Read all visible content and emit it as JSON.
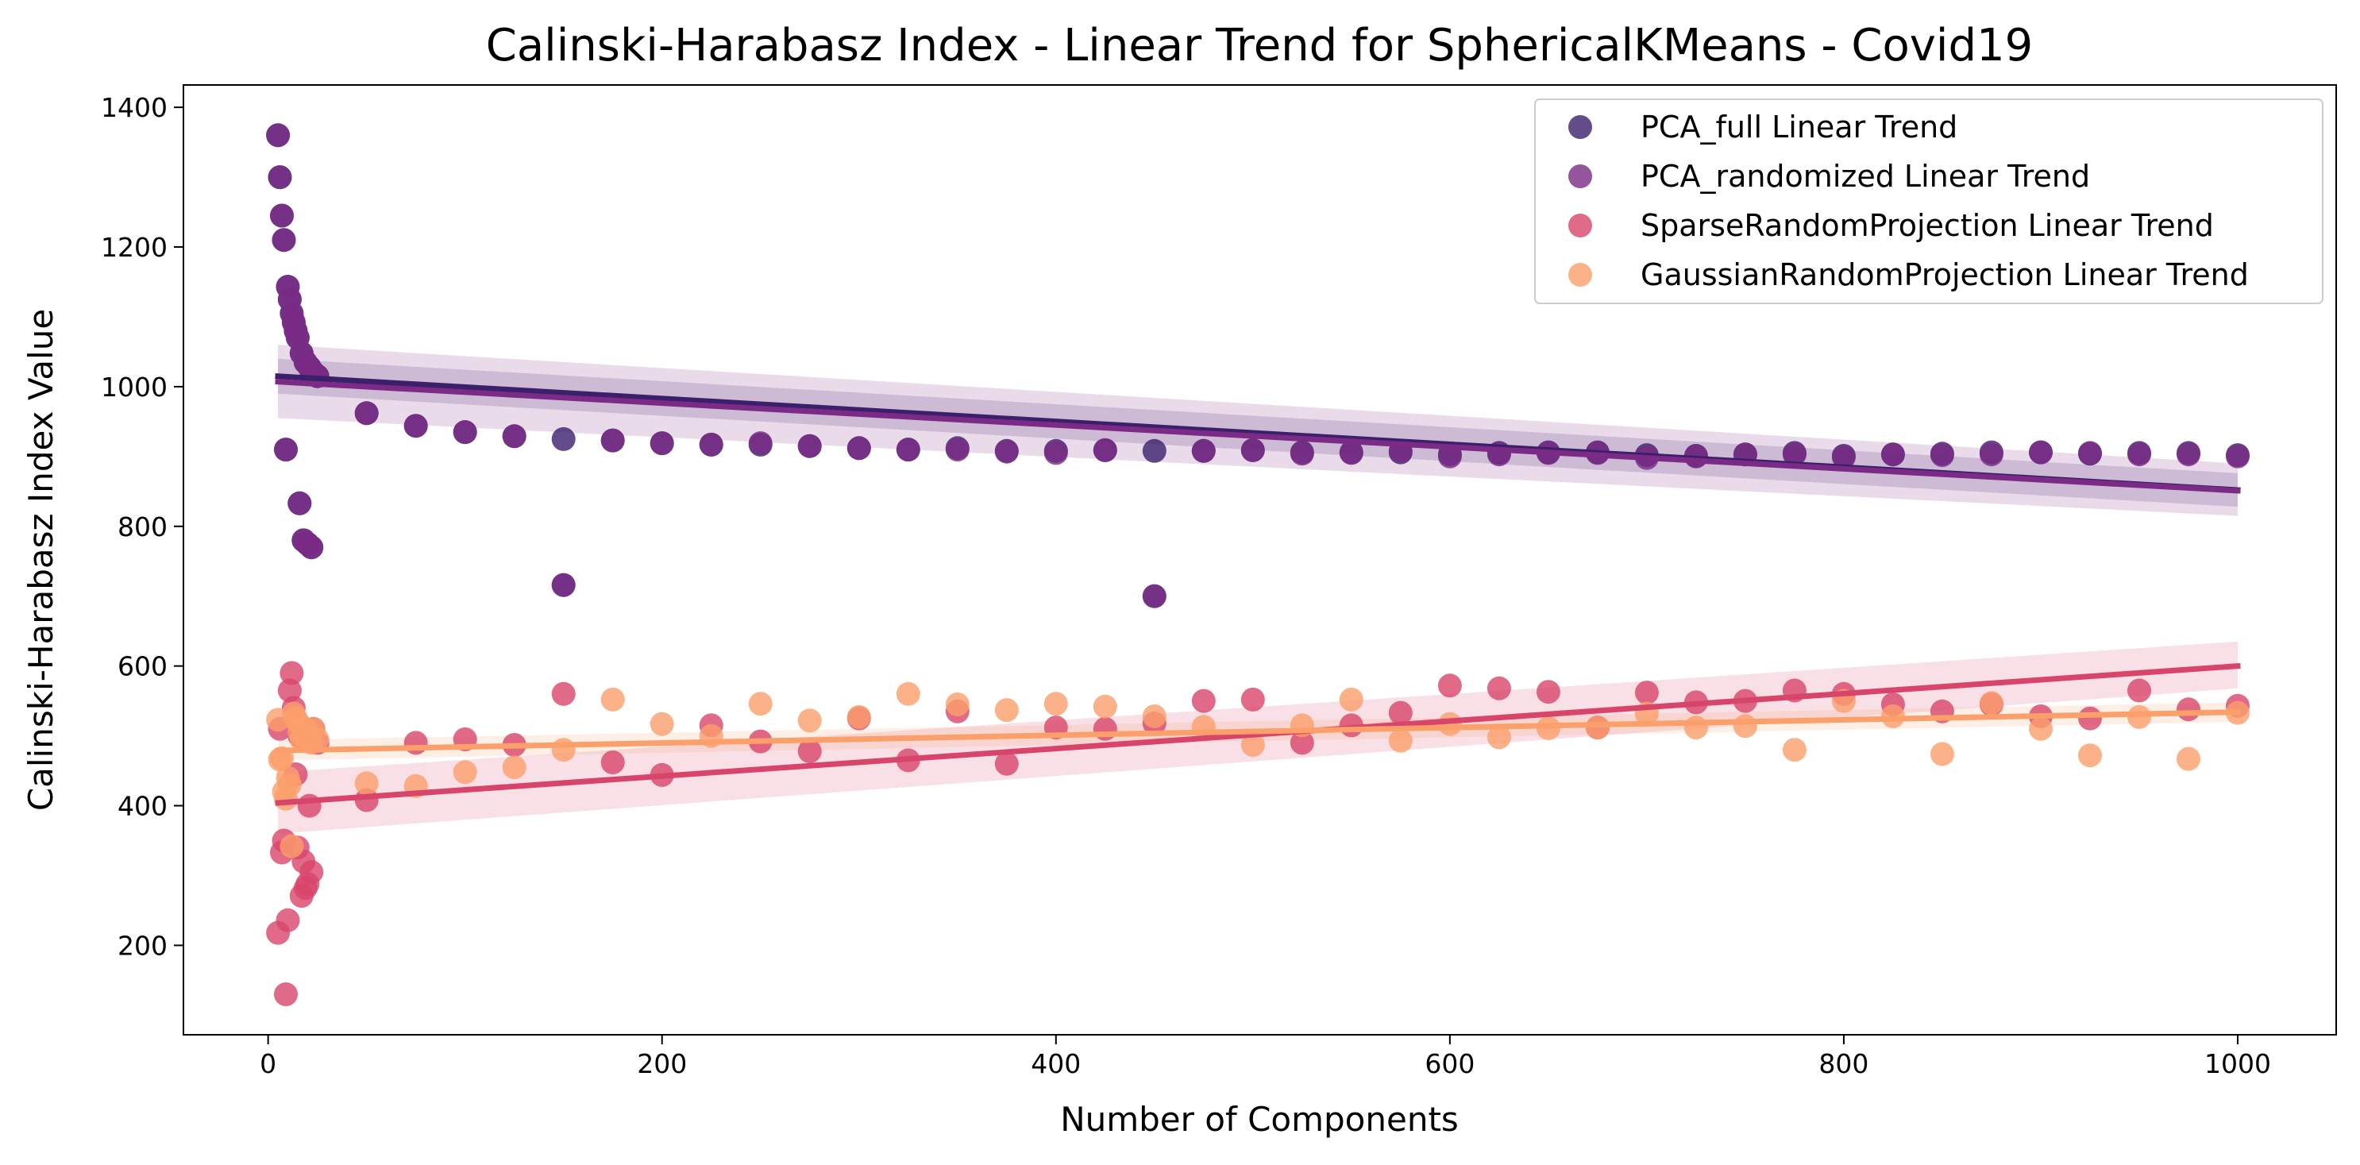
{
  "chart_data": {
    "type": "scatter",
    "title": "Calinski-Harabasz Index - Linear Trend for SphericalKMeans - Covid19",
    "xlabel": "Number of Components",
    "ylabel": "Calinski-Harabasz Index Value",
    "xlim": [
      -43,
      1050
    ],
    "ylim": [
      72,
      1432
    ],
    "xticks": [
      0,
      200,
      400,
      600,
      800,
      1000
    ],
    "yticks": [
      200,
      400,
      600,
      800,
      1000,
      1200,
      1400
    ],
    "grid": false,
    "legend_position": "top-right",
    "series": [
      {
        "name": "PCA_full Linear Trend",
        "color": "#3b1f6b",
        "trend": {
          "x0": 5,
          "y0": 1015,
          "x1": 1000,
          "y1": 852
        },
        "band": {
          "x0": 5,
          "lo0": 990,
          "hi0": 1040,
          "x1": 1000,
          "lo1": 828,
          "hi1": 876
        },
        "points": [
          [
            5,
            1360
          ],
          [
            6,
            1300
          ],
          [
            7,
            1245
          ],
          [
            8,
            1210
          ],
          [
            9,
            910
          ],
          [
            10,
            1143
          ],
          [
            11,
            1125
          ],
          [
            12,
            1105
          ],
          [
            13,
            1092
          ],
          [
            14,
            1080
          ],
          [
            15,
            1070
          ],
          [
            16,
            833
          ],
          [
            17,
            1048
          ],
          [
            18,
            780
          ],
          [
            19,
            1035
          ],
          [
            20,
            775
          ],
          [
            21,
            1028
          ],
          [
            22,
            770
          ],
          [
            23,
            1020
          ],
          [
            25,
            1015
          ],
          [
            50,
            962
          ],
          [
            75,
            944
          ],
          [
            100,
            935
          ],
          [
            125,
            929
          ],
          [
            150,
            925
          ],
          [
            175,
            923
          ],
          [
            200,
            919
          ],
          [
            225,
            917
          ],
          [
            250,
            917
          ],
          [
            275,
            915
          ],
          [
            300,
            912
          ],
          [
            325,
            910
          ],
          [
            350,
            912
          ],
          [
            375,
            908
          ],
          [
            400,
            908
          ],
          [
            425,
            909
          ],
          [
            450,
            908
          ],
          [
            475,
            908
          ],
          [
            500,
            909
          ],
          [
            525,
            906
          ],
          [
            550,
            906
          ],
          [
            575,
            906
          ],
          [
            600,
            903
          ],
          [
            625,
            905
          ],
          [
            650,
            906
          ],
          [
            675,
            906
          ],
          [
            700,
            902
          ],
          [
            725,
            901
          ],
          [
            750,
            903
          ],
          [
            775,
            905
          ],
          [
            800,
            901
          ],
          [
            825,
            903
          ],
          [
            850,
            904
          ],
          [
            875,
            906
          ],
          [
            900,
            906
          ],
          [
            925,
            904
          ],
          [
            950,
            905
          ],
          [
            975,
            905
          ],
          [
            1000,
            902
          ],
          [
            150,
            716
          ],
          [
            450,
            700
          ]
        ]
      },
      {
        "name": "PCA_randomized Linear Trend",
        "color": "#7b2a85",
        "trend": {
          "x0": 5,
          "y0": 1007,
          "x1": 1000,
          "y1": 851
        },
        "band": {
          "x0": 5,
          "lo0": 955,
          "hi0": 1060,
          "x1": 1000,
          "lo1": 815,
          "hi1": 890
        },
        "points": [
          [
            5,
            1360
          ],
          [
            6,
            1300
          ],
          [
            7,
            1245
          ],
          [
            8,
            1210
          ],
          [
            9,
            910
          ],
          [
            10,
            1143
          ],
          [
            11,
            1125
          ],
          [
            12,
            1105
          ],
          [
            13,
            1092
          ],
          [
            14,
            1080
          ],
          [
            15,
            1070
          ],
          [
            16,
            833
          ],
          [
            17,
            1048
          ],
          [
            18,
            780
          ],
          [
            19,
            1035
          ],
          [
            20,
            775
          ],
          [
            21,
            1028
          ],
          [
            22,
            770
          ],
          [
            23,
            1020
          ],
          [
            25,
            1015
          ],
          [
            50,
            962
          ],
          [
            75,
            944
          ],
          [
            100,
            935
          ],
          [
            125,
            929
          ],
          [
            175,
            923
          ],
          [
            200,
            919
          ],
          [
            225,
            917
          ],
          [
            250,
            919
          ],
          [
            275,
            915
          ],
          [
            300,
            912
          ],
          [
            325,
            910
          ],
          [
            350,
            910
          ],
          [
            375,
            907
          ],
          [
            400,
            905
          ],
          [
            425,
            909
          ],
          [
            475,
            908
          ],
          [
            500,
            909
          ],
          [
            525,
            904
          ],
          [
            550,
            905
          ],
          [
            575,
            908
          ],
          [
            600,
            900
          ],
          [
            625,
            903
          ],
          [
            650,
            905
          ],
          [
            675,
            905
          ],
          [
            700,
            898
          ],
          [
            725,
            900
          ],
          [
            750,
            903
          ],
          [
            775,
            903
          ],
          [
            800,
            899
          ],
          [
            825,
            903
          ],
          [
            850,
            902
          ],
          [
            875,
            903
          ],
          [
            900,
            906
          ],
          [
            925,
            905
          ],
          [
            950,
            903
          ],
          [
            975,
            903
          ],
          [
            1000,
            900
          ],
          [
            150,
            716
          ],
          [
            450,
            700
          ]
        ]
      },
      {
        "name": "SparseRandomProjection Linear Trend",
        "color": "#d8456a",
        "trend": {
          "x0": 5,
          "y0": 404,
          "x1": 1000,
          "y1": 600
        },
        "band": {
          "x0": 5,
          "lo0": 360,
          "hi0": 448,
          "x1": 1000,
          "lo1": 568,
          "hi1": 635
        },
        "points": [
          [
            5,
            218
          ],
          [
            6,
            510
          ],
          [
            7,
            333
          ],
          [
            8,
            350
          ],
          [
            9,
            130
          ],
          [
            10,
            236
          ],
          [
            11,
            565
          ],
          [
            12,
            590
          ],
          [
            13,
            540
          ],
          [
            14,
            445
          ],
          [
            15,
            340
          ],
          [
            16,
            500
          ],
          [
            17,
            271
          ],
          [
            18,
            320
          ],
          [
            19,
            282
          ],
          [
            20,
            288
          ],
          [
            21,
            400
          ],
          [
            22,
            305
          ],
          [
            23,
            510
          ],
          [
            25,
            490
          ],
          [
            50,
            408
          ],
          [
            75,
            490
          ],
          [
            100,
            495
          ],
          [
            125,
            487
          ],
          [
            150,
            560
          ],
          [
            175,
            462
          ],
          [
            200,
            444
          ],
          [
            225,
            515
          ],
          [
            250,
            492
          ],
          [
            275,
            478
          ],
          [
            300,
            525
          ],
          [
            325,
            465
          ],
          [
            350,
            535
          ],
          [
            375,
            460
          ],
          [
            400,
            512
          ],
          [
            425,
            510
          ],
          [
            450,
            518
          ],
          [
            475,
            550
          ],
          [
            500,
            552
          ],
          [
            525,
            490
          ],
          [
            550,
            515
          ],
          [
            575,
            533
          ],
          [
            600,
            572
          ],
          [
            625,
            568
          ],
          [
            650,
            563
          ],
          [
            675,
            512
          ],
          [
            700,
            562
          ],
          [
            725,
            548
          ],
          [
            750,
            550
          ],
          [
            775,
            565
          ],
          [
            800,
            560
          ],
          [
            825,
            545
          ],
          [
            850,
            535
          ],
          [
            875,
            545
          ],
          [
            900,
            528
          ],
          [
            925,
            525
          ],
          [
            950,
            565
          ],
          [
            975,
            538
          ],
          [
            1000,
            543
          ]
        ]
      },
      {
        "name": "GaussianRandomProjection Linear Trend",
        "color": "#fb9f6b",
        "trend": {
          "x0": 5,
          "y0": 479,
          "x1": 1000,
          "y1": 534
        },
        "band": {
          "x0": 5,
          "lo0": 465,
          "hi0": 494,
          "x1": 1000,
          "lo1": 520,
          "hi1": 548
        },
        "points": [
          [
            5,
            523
          ],
          [
            6,
            466
          ],
          [
            7,
            468
          ],
          [
            8,
            420
          ],
          [
            9,
            410
          ],
          [
            10,
            440
          ],
          [
            11,
            430
          ],
          [
            12,
            342
          ],
          [
            13,
            532
          ],
          [
            14,
            525
          ],
          [
            15,
            520
          ],
          [
            16,
            505
          ],
          [
            17,
            495
          ],
          [
            18,
            500
          ],
          [
            19,
            510
          ],
          [
            20,
            505
          ],
          [
            21,
            498
          ],
          [
            22,
            490
          ],
          [
            23,
            510
          ],
          [
            25,
            495
          ],
          [
            50,
            432
          ],
          [
            75,
            428
          ],
          [
            100,
            448
          ],
          [
            125,
            455
          ],
          [
            150,
            480
          ],
          [
            175,
            552
          ],
          [
            200,
            517
          ],
          [
            225,
            500
          ],
          [
            250,
            546
          ],
          [
            275,
            522
          ],
          [
            300,
            527
          ],
          [
            325,
            560
          ],
          [
            350,
            545
          ],
          [
            375,
            537
          ],
          [
            400,
            546
          ],
          [
            425,
            542
          ],
          [
            450,
            528
          ],
          [
            475,
            513
          ],
          [
            500,
            487
          ],
          [
            525,
            515
          ],
          [
            550,
            552
          ],
          [
            575,
            493
          ],
          [
            600,
            517
          ],
          [
            625,
            498
          ],
          [
            650,
            511
          ],
          [
            675,
            512
          ],
          [
            700,
            532
          ],
          [
            725,
            512
          ],
          [
            750,
            514
          ],
          [
            775,
            480
          ],
          [
            800,
            550
          ],
          [
            825,
            528
          ],
          [
            850,
            474
          ],
          [
            875,
            547
          ],
          [
            900,
            510
          ],
          [
            925,
            472
          ],
          [
            950,
            527
          ],
          [
            975,
            467
          ],
          [
            1000,
            533
          ]
        ]
      }
    ]
  }
}
